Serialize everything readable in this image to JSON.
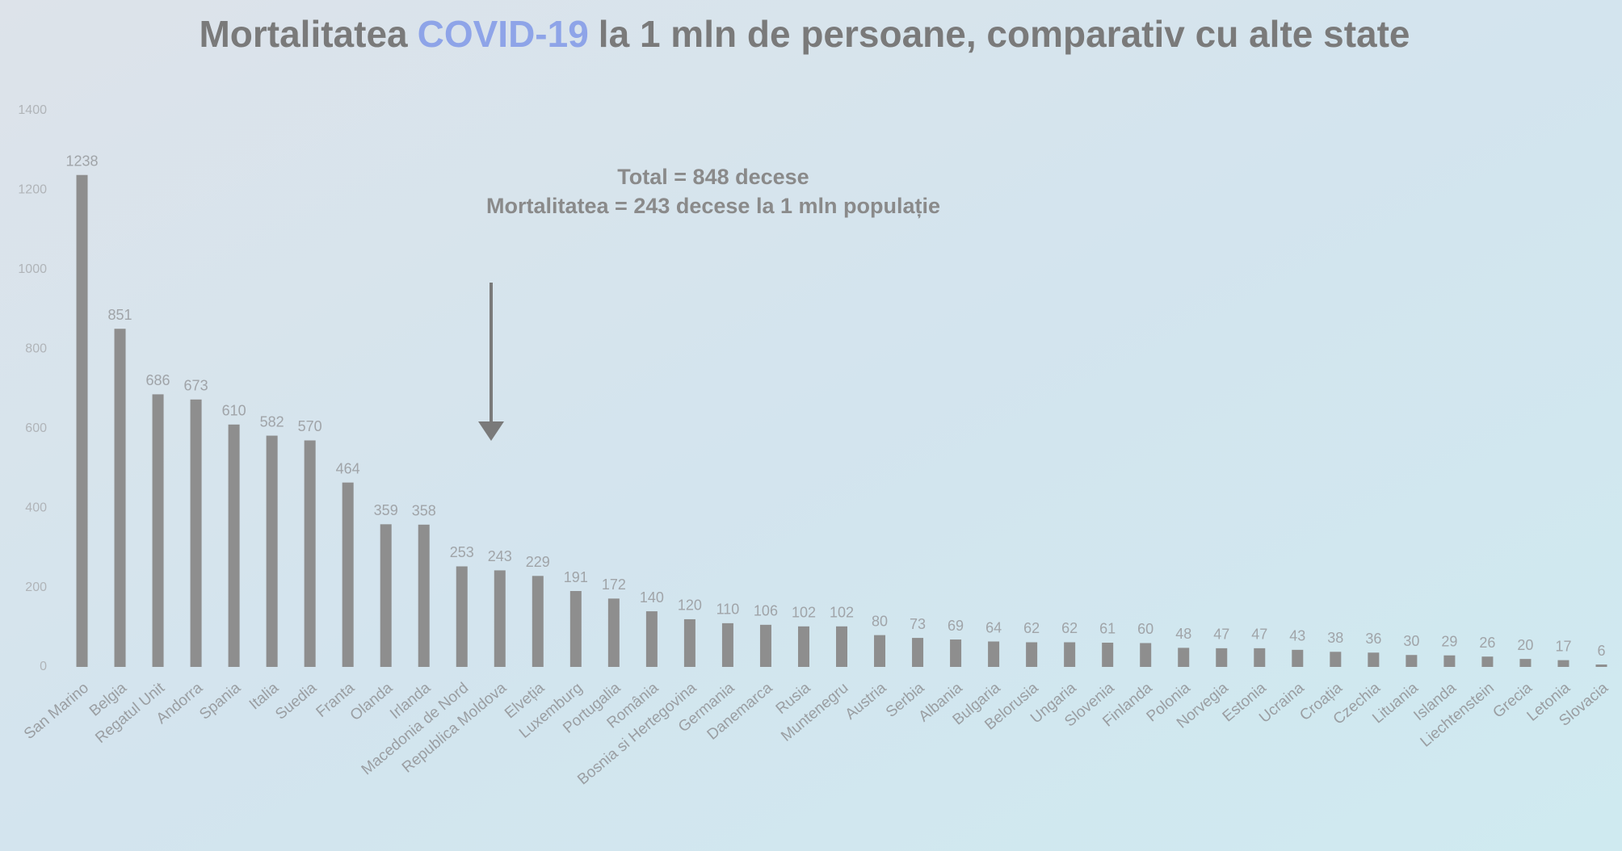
{
  "chart_data": {
    "type": "bar",
    "title": [
      "Mortalitatea",
      "COVID-19",
      "la 1 mln de persoane, comparativ cu alte state"
    ],
    "annotations": [
      "Total = 848 decese",
      "Mortalitatea = 243 decese la 1 mln populație"
    ],
    "categories": [
      "San Marino",
      "Belgia",
      "Regatul Unit",
      "Andorra",
      "Spania",
      "Italia",
      "Suedia",
      "Franta",
      "Olanda",
      "Irlanda",
      "Macedonia de Nord",
      "Republica Moldova",
      "Elveția",
      "Luxemburg",
      "Portugalia",
      "România",
      "Bosnia si Hertegovina",
      "Germania",
      "Danemarca",
      "Rusia",
      "Muntenegru",
      "Austria",
      "Serbia",
      "Albania",
      "Bulgaria",
      "Belorusia",
      "Ungaria",
      "Slovenia",
      "Finlanda",
      "Polonia",
      "Norvegia",
      "Estonia",
      "Ucraina",
      "Croația",
      "Czechia",
      "Lituania",
      "Islanda",
      "Liechtenstein",
      "Grecia",
      "Letonia",
      "Slovacia"
    ],
    "values": [
      1238,
      851,
      686,
      673,
      610,
      582,
      570,
      464,
      359,
      358,
      253,
      243,
      229,
      191,
      172,
      140,
      120,
      110,
      106,
      102,
      102,
      80,
      73,
      69,
      64,
      62,
      62,
      61,
      60,
      48,
      47,
      47,
      43,
      38,
      36,
      30,
      29,
      26,
      20,
      17,
      6
    ],
    "color": "#8e8e8e",
    "ylim": [
      0,
      1400
    ],
    "yticks": [
      0,
      200,
      400,
      600,
      800,
      1000,
      1200,
      1400
    ],
    "grid": false
  }
}
